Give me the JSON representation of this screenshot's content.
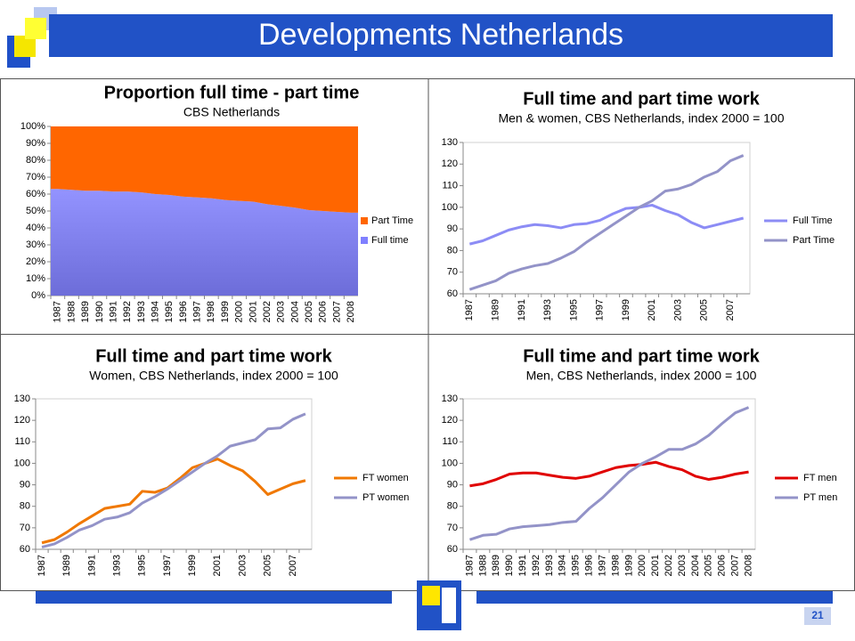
{
  "title": "Developments Netherlands",
  "page_number": "21",
  "chart_data": [
    {
      "type": "area",
      "stacked": true,
      "title": "Proportion full time - part time",
      "subtitle": "CBS Netherlands",
      "categories": [
        "1987",
        "1988",
        "1989",
        "1990",
        "1991",
        "1992",
        "1993",
        "1994",
        "1995",
        "1996",
        "1997",
        "1998",
        "1999",
        "2000",
        "2001",
        "2002",
        "2003",
        "2004",
        "2005",
        "2006",
        "2007",
        "2008"
      ],
      "series": [
        {
          "name": "Part Time",
          "color": "#ff6600",
          "values": [
            37,
            37.5,
            38,
            38,
            38.5,
            38.5,
            39,
            40,
            40.5,
            41.5,
            42,
            42.5,
            43.5,
            44,
            44.5,
            46,
            47,
            48,
            49.5,
            50,
            50.5,
            51
          ]
        },
        {
          "name": "Full time",
          "color": "#8080ff",
          "values": [
            63,
            62.5,
            62,
            62,
            61.5,
            61.5,
            61,
            60,
            59.5,
            58.5,
            58,
            57.5,
            56.5,
            56,
            55.5,
            54,
            53,
            52,
            50.5,
            50,
            49.5,
            49
          ]
        }
      ],
      "ylim": [
        0,
        100
      ],
      "yticks": [
        {
          "value": 0,
          "label": "0%"
        },
        {
          "value": 10,
          "label": "10%"
        },
        {
          "value": 20,
          "label": "20%"
        },
        {
          "value": 30,
          "label": "30%"
        },
        {
          "value": 40,
          "label": "40%"
        },
        {
          "value": 50,
          "label": "50%"
        },
        {
          "value": 60,
          "label": "60%"
        },
        {
          "value": 70,
          "label": "70%"
        },
        {
          "value": 80,
          "label": "80%"
        },
        {
          "value": 90,
          "label": "90%"
        },
        {
          "value": 100,
          "label": "100%"
        }
      ],
      "grid": false,
      "legend": "right"
    },
    {
      "type": "line",
      "title": "Full time and part time work",
      "subtitle": "Men & women, CBS Netherlands, index 2000 = 100",
      "categories": [
        "1987",
        null,
        "1989",
        null,
        "1991",
        null,
        "1993",
        null,
        "1995",
        null,
        "1997",
        null,
        "1999",
        null,
        "2001",
        null,
        "2003",
        null,
        "2005",
        null,
        "2007",
        null
      ],
      "series": [
        {
          "name": "Full Time",
          "color": "#8c8cf5",
          "values": [
            83,
            84.5,
            87,
            89.5,
            91,
            92,
            91.5,
            90.5,
            92,
            92.5,
            94,
            97,
            99.5,
            100,
            101,
            98.5,
            96.5,
            93,
            90.5,
            92,
            93.5,
            95
          ]
        },
        {
          "name": "Part Time",
          "color": "#9393c8",
          "values": [
            62,
            64,
            66,
            69.5,
            71.5,
            73,
            74,
            76.5,
            79.5,
            84,
            88,
            92,
            96,
            100,
            103,
            107.5,
            108.5,
            110.5,
            114,
            116.5,
            121.5,
            124
          ]
        }
      ],
      "ylim": [
        60,
        130
      ],
      "yticks": [
        60,
        70,
        80,
        90,
        100,
        110,
        120,
        130
      ],
      "grid": false,
      "legend": "right"
    },
    {
      "type": "line",
      "title": "Full time and part time work",
      "subtitle": "Women, CBS Netherlands, index 2000 = 100",
      "categories": [
        "1987",
        null,
        "1989",
        null,
        "1991",
        null,
        "1993",
        null,
        "1995",
        null,
        "1997",
        null,
        "1999",
        null,
        "2001",
        null,
        "2003",
        null,
        "2005",
        null,
        "2007",
        null
      ],
      "series": [
        {
          "name": "FT women",
          "color": "#f07800",
          "values": [
            63,
            64.5,
            68,
            72,
            75.5,
            79,
            80,
            81,
            87,
            86.5,
            88.5,
            93,
            98,
            100,
            102,
            99,
            96.5,
            91.5,
            85.5,
            88,
            90.5,
            92
          ]
        },
        {
          "name": "PT women",
          "color": "#9393c8",
          "values": [
            61,
            62.5,
            65.5,
            69,
            71,
            74,
            75,
            77,
            81.5,
            84.5,
            88,
            92,
            96,
            100,
            103.5,
            108,
            109.5,
            111,
            116,
            116.5,
            120.5,
            123
          ]
        }
      ],
      "ylim": [
        60,
        130
      ],
      "yticks": [
        60,
        70,
        80,
        90,
        100,
        110,
        120,
        130
      ],
      "grid": false,
      "legend": "right"
    },
    {
      "type": "line",
      "title": "Full time and part time work",
      "subtitle": "Men, CBS Netherlands, index 2000 = 100",
      "categories": [
        "1987",
        "1988",
        "1989",
        "1990",
        "1991",
        "1992",
        "1993",
        "1994",
        "1995",
        "1996",
        "1997",
        "1998",
        "1999",
        "2000",
        "2001",
        "2002",
        "2003",
        "2004",
        "2005",
        "2006",
        "2007",
        "2008"
      ],
      "series": [
        {
          "name": "FT men",
          "color": "#e00000",
          "values": [
            89.5,
            90.5,
            92.5,
            95,
            95.5,
            95.5,
            94.5,
            93.5,
            93,
            94,
            96,
            98,
            99,
            99.5,
            100.5,
            98.5,
            97,
            94,
            92.5,
            93.5,
            95,
            96
          ]
        },
        {
          "name": "PT men",
          "color": "#9393c8",
          "values": [
            64.5,
            66.5,
            67,
            69.5,
            70.5,
            71,
            71.5,
            72.5,
            73,
            79,
            84,
            90,
            96,
            100,
            103,
            106.5,
            106.5,
            109,
            113,
            118.5,
            123.5,
            126
          ]
        }
      ],
      "ylim": [
        60,
        130
      ],
      "yticks": [
        60,
        70,
        80,
        90,
        100,
        110,
        120,
        130
      ],
      "grid": false,
      "legend": "right"
    }
  ]
}
